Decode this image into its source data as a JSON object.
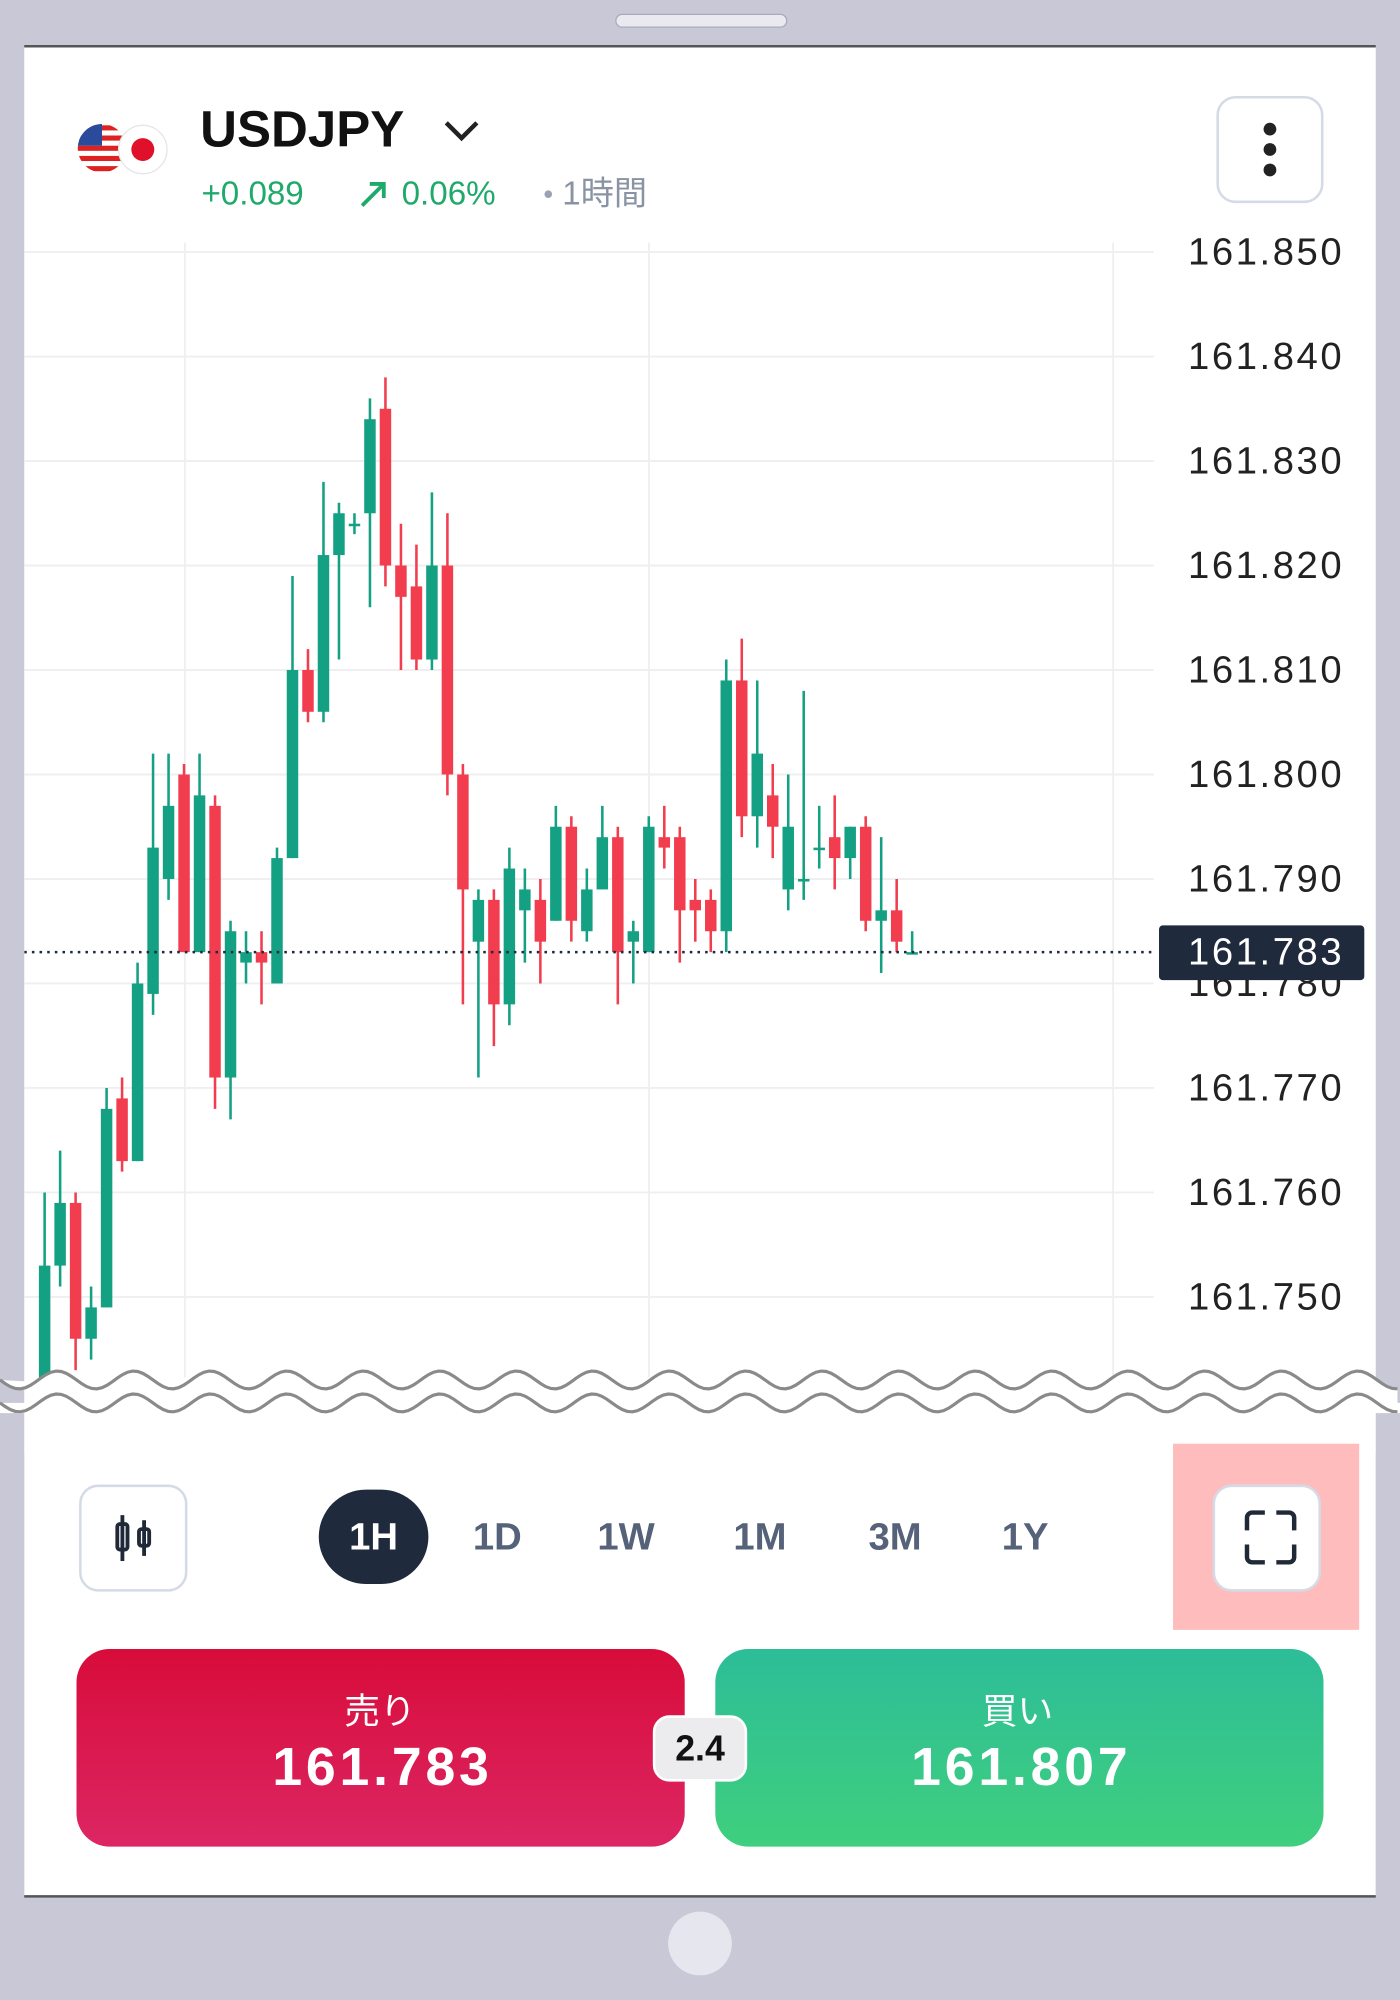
{
  "header": {
    "symbol": "USDJPY",
    "change": "+0.089",
    "change_percent": "0.06%",
    "interval": "1時間"
  },
  "chart_data": {
    "type": "candlestick",
    "up_color": "#14a083",
    "down_color": "#f23d4f",
    "ylim": [
      161.7423,
      161.8509
    ],
    "yticks": [
      {
        "value": 161.85,
        "label": "161.850"
      },
      {
        "value": 161.84,
        "label": "161.840"
      },
      {
        "value": 161.83,
        "label": "161.830"
      },
      {
        "value": 161.82,
        "label": "161.820"
      },
      {
        "value": 161.81,
        "label": "161.810"
      },
      {
        "value": 161.8,
        "label": "161.800"
      },
      {
        "value": 161.79,
        "label": "161.790"
      },
      {
        "value": 161.78,
        "label": "161.780"
      },
      {
        "value": 161.77,
        "label": "161.770"
      },
      {
        "value": 161.76,
        "label": "161.760"
      },
      {
        "value": 161.75,
        "label": "161.750"
      }
    ],
    "grid": true,
    "current_price": 161.783,
    "open": [
      161.742,
      161.753,
      161.759,
      161.746,
      161.749,
      161.769,
      161.763,
      161.779,
      161.79,
      161.8,
      161.783,
      161.797,
      161.771,
      161.782,
      161.783,
      161.78,
      161.792,
      161.81,
      161.806,
      161.821,
      161.824,
      161.825,
      161.835,
      161.82,
      161.818,
      161.811,
      161.82,
      161.8,
      161.784,
      161.788,
      161.778,
      161.787,
      161.788,
      161.786,
      161.795,
      161.785,
      161.789,
      161.794,
      161.784,
      161.783,
      161.794,
      161.794,
      161.788,
      161.788,
      161.785,
      161.809,
      161.796,
      161.798,
      161.789,
      161.79,
      161.793,
      161.794,
      161.792,
      161.795,
      161.786,
      161.787,
      161.783
    ],
    "high": [
      161.76,
      161.764,
      161.76,
      161.751,
      161.77,
      161.771,
      161.782,
      161.802,
      161.802,
      161.801,
      161.802,
      161.798,
      161.786,
      161.785,
      161.785,
      161.793,
      161.819,
      161.812,
      161.828,
      161.826,
      161.825,
      161.836,
      161.838,
      161.824,
      161.822,
      161.827,
      161.825,
      161.801,
      161.789,
      161.789,
      161.793,
      161.791,
      161.79,
      161.797,
      161.796,
      161.791,
      161.797,
      161.795,
      161.786,
      161.796,
      161.797,
      161.795,
      161.79,
      161.789,
      161.811,
      161.813,
      161.809,
      161.801,
      161.8,
      161.808,
      161.797,
      161.798,
      161.795,
      161.796,
      161.794,
      161.79,
      161.785
    ],
    "low": [
      161.741,
      161.751,
      161.743,
      161.744,
      161.749,
      161.762,
      161.763,
      161.777,
      161.788,
      161.783,
      161.783,
      161.768,
      161.767,
      161.78,
      161.778,
      161.78,
      161.792,
      161.805,
      161.805,
      161.811,
      161.823,
      161.816,
      161.818,
      161.81,
      161.81,
      161.81,
      161.798,
      161.778,
      161.771,
      161.774,
      161.776,
      161.782,
      161.78,
      161.786,
      161.784,
      161.784,
      161.789,
      161.778,
      161.78,
      161.783,
      161.791,
      161.782,
      161.784,
      161.783,
      161.783,
      161.794,
      161.793,
      161.792,
      161.787,
      161.788,
      161.791,
      161.789,
      161.79,
      161.785,
      161.781,
      161.783,
      161.783
    ],
    "close": [
      161.753,
      161.759,
      161.746,
      161.749,
      161.768,
      161.763,
      161.78,
      161.793,
      161.797,
      161.783,
      161.798,
      161.771,
      161.785,
      161.783,
      161.782,
      161.792,
      161.81,
      161.806,
      161.821,
      161.825,
      161.824,
      161.834,
      161.82,
      161.817,
      161.811,
      161.82,
      161.8,
      161.789,
      161.788,
      161.778,
      161.791,
      161.789,
      161.784,
      161.795,
      161.786,
      161.789,
      161.794,
      161.783,
      161.785,
      161.795,
      161.793,
      161.787,
      161.787,
      161.785,
      161.809,
      161.796,
      161.802,
      161.795,
      161.795,
      161.79,
      161.793,
      161.792,
      161.795,
      161.786,
      161.787,
      161.784,
      161.783
    ]
  },
  "timeframes": {
    "options": [
      "1H",
      "1D",
      "1W",
      "1M",
      "3M",
      "1Y"
    ],
    "selected_index": 0
  },
  "trade": {
    "sell_label": "売り",
    "sell_price": "161.783",
    "spread": "2.4",
    "buy_label": "買い",
    "buy_price": "161.807"
  }
}
